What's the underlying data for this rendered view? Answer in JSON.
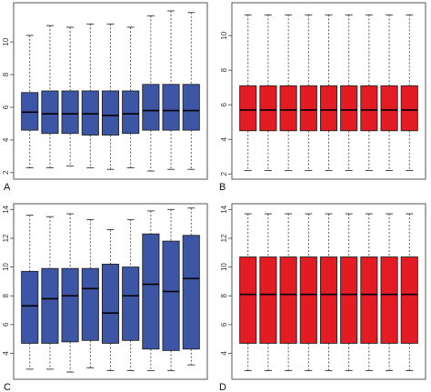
{
  "colors": {
    "blue": "#3d55a5",
    "red": "#e31b23"
  },
  "chart_data": [
    {
      "type": "box",
      "panel_label": "A",
      "color": "#3d55a5",
      "ylim": [
        1.6,
        12.4
      ],
      "yticks": [
        2,
        4,
        6,
        8,
        10
      ],
      "boxes": [
        {
          "min": 2.3,
          "q1": 4.6,
          "median": 5.7,
          "q3": 6.9,
          "max": 10.4
        },
        {
          "min": 2.3,
          "q1": 4.4,
          "median": 5.6,
          "q3": 7.0,
          "max": 11.0
        },
        {
          "min": 2.4,
          "q1": 4.4,
          "median": 5.6,
          "q3": 7.0,
          "max": 10.9
        },
        {
          "min": 2.3,
          "q1": 4.3,
          "median": 5.6,
          "q3": 7.0,
          "max": 11.1
        },
        {
          "min": 2.2,
          "q1": 4.3,
          "median": 5.5,
          "q3": 7.0,
          "max": 11.1
        },
        {
          "min": 2.3,
          "q1": 4.4,
          "median": 5.6,
          "q3": 7.0,
          "max": 10.9
        },
        {
          "min": 2.1,
          "q1": 4.6,
          "median": 5.8,
          "q3": 7.4,
          "max": 11.6
        },
        {
          "min": 2.2,
          "q1": 4.6,
          "median": 5.8,
          "q3": 7.4,
          "max": 11.9
        },
        {
          "min": 2.2,
          "q1": 4.6,
          "median": 5.8,
          "q3": 7.4,
          "max": 11.8
        }
      ]
    },
    {
      "type": "box",
      "panel_label": "B",
      "color": "#e31b23",
      "ylim": [
        1.7,
        11.9
      ],
      "yticks": [
        2,
        4,
        6,
        8,
        10
      ],
      "boxes": [
        {
          "min": 2.2,
          "q1": 4.5,
          "median": 5.7,
          "q3": 7.1,
          "max": 11.2
        },
        {
          "min": 2.2,
          "q1": 4.5,
          "median": 5.7,
          "q3": 7.1,
          "max": 11.2
        },
        {
          "min": 2.2,
          "q1": 4.5,
          "median": 5.7,
          "q3": 7.1,
          "max": 11.2
        },
        {
          "min": 2.2,
          "q1": 4.5,
          "median": 5.7,
          "q3": 7.1,
          "max": 11.2
        },
        {
          "min": 2.2,
          "q1": 4.5,
          "median": 5.7,
          "q3": 7.1,
          "max": 11.2
        },
        {
          "min": 2.2,
          "q1": 4.5,
          "median": 5.7,
          "q3": 7.1,
          "max": 11.2
        },
        {
          "min": 2.2,
          "q1": 4.5,
          "median": 5.7,
          "q3": 7.1,
          "max": 11.2
        },
        {
          "min": 2.2,
          "q1": 4.5,
          "median": 5.7,
          "q3": 7.1,
          "max": 11.2
        },
        {
          "min": 2.2,
          "q1": 4.5,
          "median": 5.7,
          "q3": 7.1,
          "max": 11.2
        }
      ]
    },
    {
      "type": "box",
      "panel_label": "C",
      "color": "#3d55a5",
      "ylim": [
        2.2,
        14.4
      ],
      "yticks": [
        4,
        6,
        8,
        10,
        12,
        14
      ],
      "boxes": [
        {
          "min": 2.9,
          "q1": 4.7,
          "median": 7.3,
          "q3": 9.7,
          "max": 13.6
        },
        {
          "min": 2.9,
          "q1": 4.7,
          "median": 7.8,
          "q3": 9.9,
          "max": 13.5
        },
        {
          "min": 2.7,
          "q1": 4.8,
          "median": 8.0,
          "q3": 9.9,
          "max": 13.7
        },
        {
          "min": 3.0,
          "q1": 4.9,
          "median": 8.5,
          "q3": 9.9,
          "max": 13.3
        },
        {
          "min": 2.8,
          "q1": 4.7,
          "median": 6.8,
          "q3": 10.2,
          "max": 12.6
        },
        {
          "min": 2.8,
          "q1": 4.9,
          "median": 8.0,
          "q3": 10.0,
          "max": 13.3
        },
        {
          "min": 2.8,
          "q1": 4.3,
          "median": 8.8,
          "q3": 12.3,
          "max": 13.9
        },
        {
          "min": 2.8,
          "q1": 4.2,
          "median": 8.3,
          "q3": 11.8,
          "max": 14.0
        },
        {
          "min": 3.2,
          "q1": 4.3,
          "median": 9.2,
          "q3": 12.2,
          "max": 14.1
        }
      ]
    },
    {
      "type": "box",
      "panel_label": "D",
      "color": "#e31b23",
      "ylim": [
        2.2,
        14.4
      ],
      "yticks": [
        4,
        6,
        8,
        10,
        12,
        14
      ],
      "boxes": [
        {
          "min": 2.8,
          "q1": 4.7,
          "median": 8.1,
          "q3": 10.7,
          "max": 13.7
        },
        {
          "min": 2.8,
          "q1": 4.7,
          "median": 8.1,
          "q3": 10.7,
          "max": 13.7
        },
        {
          "min": 2.8,
          "q1": 4.7,
          "median": 8.1,
          "q3": 10.7,
          "max": 13.7
        },
        {
          "min": 2.8,
          "q1": 4.7,
          "median": 8.1,
          "q3": 10.7,
          "max": 13.7
        },
        {
          "min": 2.8,
          "q1": 4.7,
          "median": 8.1,
          "q3": 10.7,
          "max": 13.7
        },
        {
          "min": 2.8,
          "q1": 4.7,
          "median": 8.1,
          "q3": 10.7,
          "max": 13.7
        },
        {
          "min": 2.8,
          "q1": 4.7,
          "median": 8.1,
          "q3": 10.7,
          "max": 13.7
        },
        {
          "min": 2.8,
          "q1": 4.7,
          "median": 8.1,
          "q3": 10.7,
          "max": 13.7
        },
        {
          "min": 2.8,
          "q1": 4.7,
          "median": 8.1,
          "q3": 10.7,
          "max": 13.7
        }
      ]
    }
  ]
}
